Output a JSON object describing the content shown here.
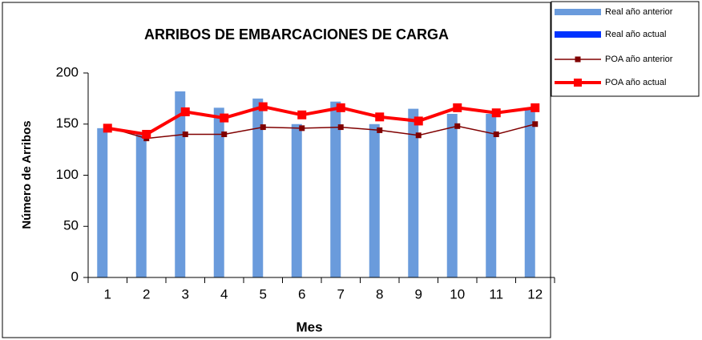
{
  "chart_data": {
    "type": "bar_line",
    "title": "ARRIBOS DE EMBARCACIONES DE CARGA",
    "xlabel": "Mes",
    "ylabel": "Número de Arribos",
    "categories": [
      "1",
      "2",
      "3",
      "4",
      "5",
      "6",
      "7",
      "8",
      "9",
      "10",
      "11",
      "12"
    ],
    "series": [
      {
        "name": "Real año anterior",
        "kind": "bar",
        "color": "#6a9bdc",
        "values": [
          146,
          140,
          182,
          166,
          175,
          150,
          172,
          150,
          165,
          160,
          160,
          164
        ]
      },
      {
        "name": "Real año actual",
        "kind": "bar",
        "color": "#0033ff",
        "values": [
          null,
          null,
          null,
          null,
          null,
          null,
          null,
          null,
          null,
          null,
          null,
          null
        ]
      },
      {
        "name": "POA año anterior",
        "kind": "line",
        "color": "#800000",
        "values": [
          147,
          136,
          140,
          140,
          147,
          146,
          147,
          144,
          139,
          148,
          140,
          150
        ]
      },
      {
        "name": "POA año actual",
        "kind": "line",
        "color": "#ff0000",
        "values": [
          146,
          140,
          162,
          156,
          167,
          159,
          166,
          157,
          153,
          166,
          161,
          166
        ]
      }
    ],
    "ylim": [
      0,
      200
    ],
    "yticks": [
      0,
      50,
      100,
      150,
      200
    ],
    "grid": false,
    "legend": "top-right"
  }
}
